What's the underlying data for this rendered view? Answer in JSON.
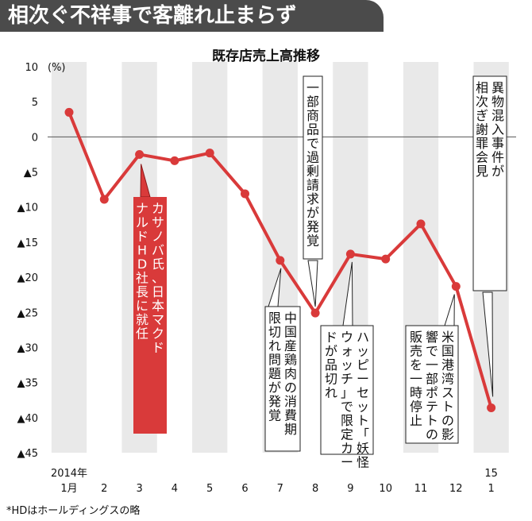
{
  "headline": "相次ぐ不祥事で客離れ止まらず",
  "footnote": "*HDはホールディングスの略",
  "colors": {
    "line": "#d93a3a",
    "band": "#e9e9e9",
    "headline_bg": "#4b4b4b",
    "highlight_box": "#d93a3a"
  },
  "chart_data": {
    "type": "line",
    "title": "既存店売上高推移",
    "unit_label": "(%)",
    "year_labels": [
      "2014年",
      "15"
    ],
    "categories": [
      "1月",
      "2",
      "3",
      "4",
      "5",
      "6",
      "7",
      "8",
      "9",
      "10",
      "11",
      "12",
      "1"
    ],
    "values": [
      3.5,
      -8.9,
      -2.5,
      -3.4,
      -2.3,
      -8.1,
      -17.6,
      -25.1,
      -16.7,
      -17.4,
      -12.4,
      -21.3,
      -38.6
    ],
    "ylim": [
      -45,
      10
    ],
    "y_ticks": [
      {
        "value": 10,
        "label": "10"
      },
      {
        "value": 5,
        "label": "5"
      },
      {
        "value": 0,
        "label": "0"
      },
      {
        "value": -5,
        "label": "▲5"
      },
      {
        "value": -10,
        "label": "▲10"
      },
      {
        "value": -15,
        "label": "▲15"
      },
      {
        "value": -20,
        "label": "▲20"
      },
      {
        "value": -25,
        "label": "▲25"
      },
      {
        "value": -30,
        "label": "▲30"
      },
      {
        "value": -35,
        "label": "▲35"
      },
      {
        "value": -40,
        "label": "▲40"
      },
      {
        "value": -45,
        "label": "▲45"
      }
    ],
    "grid": "alternating vertical bands",
    "annotations": [
      {
        "text": "カサノバ氏、日本マクドナルドHD社長に就任",
        "point": 2,
        "style": "red"
      },
      {
        "text": "中国産鶏肉の消費期限切れ問題が発覚",
        "point": 6,
        "style": "box"
      },
      {
        "text": "一部商品で過剰請求が発覚",
        "point": 7,
        "style": "plain"
      },
      {
        "text": "ハッピーセット「妖怪ウォッチ」で限定カードが品切れ",
        "point": 8,
        "style": "box"
      },
      {
        "text": "米国港湾ストの影響で一部ポテトの販売を一時停止",
        "point": 11,
        "style": "box"
      },
      {
        "text": "異物混入事件が相次ぎ謝罪会見",
        "point": 12,
        "style": "plain"
      }
    ]
  }
}
